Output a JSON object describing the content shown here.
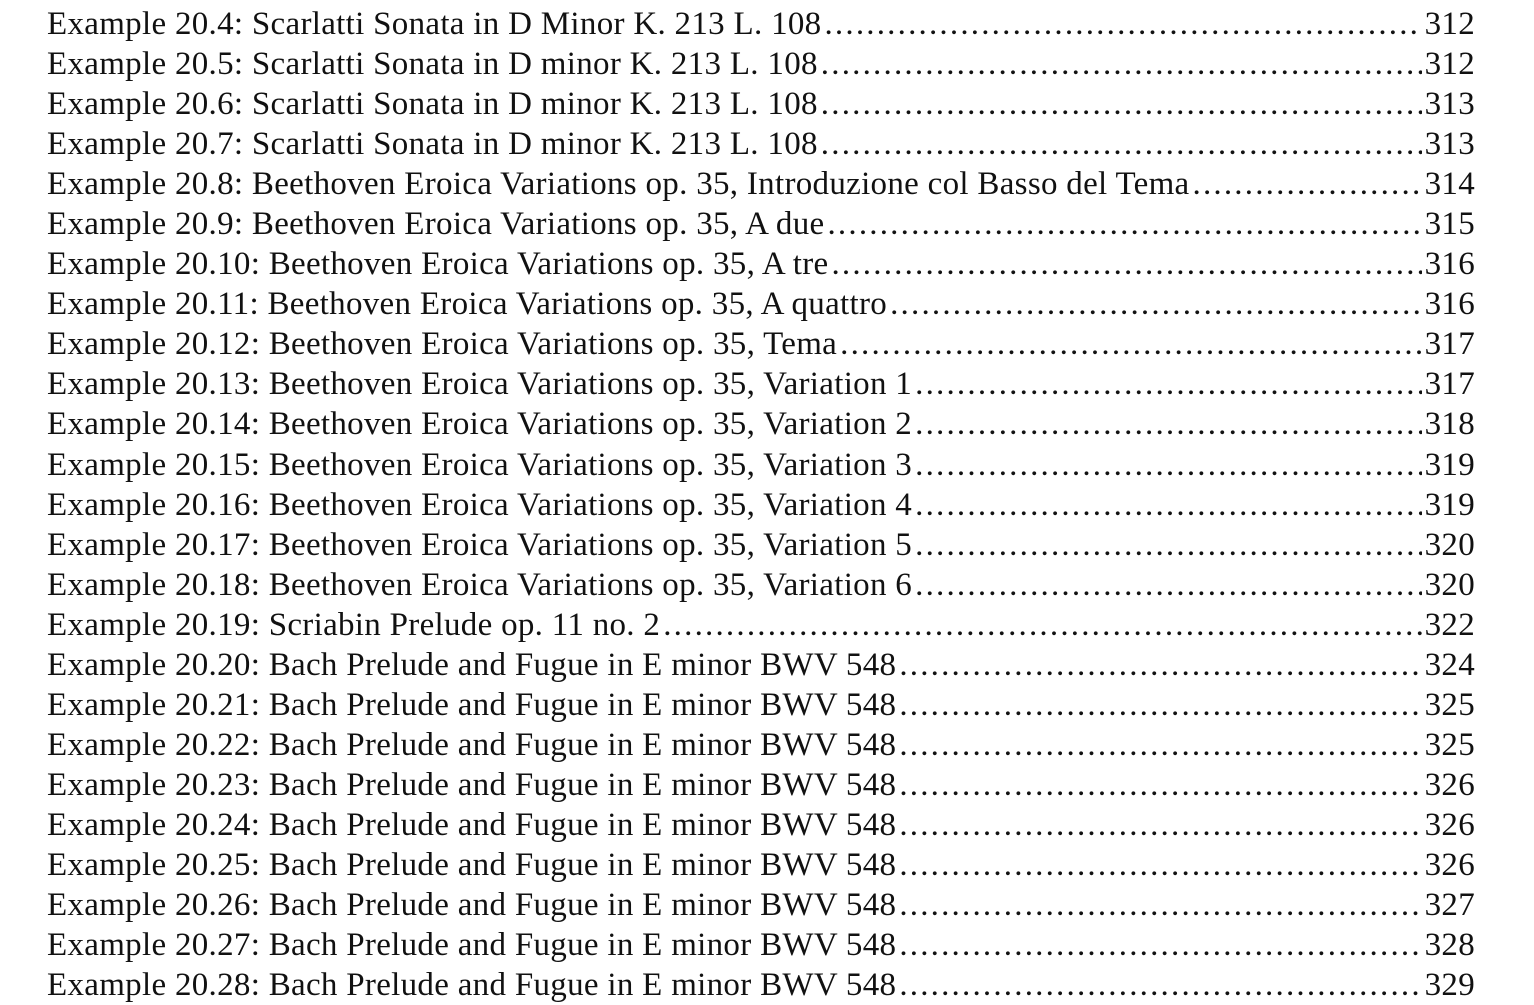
{
  "entries": [
    {
      "label": "Example 20.4: Scarlatti Sonata in D Minor K. 213 L. 108",
      "page": "312"
    },
    {
      "label": "Example 20.5: Scarlatti Sonata in D minor K. 213 L. 108",
      "page": "312"
    },
    {
      "label": "Example 20.6: Scarlatti Sonata in D minor K. 213 L. 108",
      "page": "313"
    },
    {
      "label": "Example 20.7: Scarlatti Sonata in D minor K. 213 L. 108",
      "page": "313"
    },
    {
      "label": "Example 20.8: Beethoven Eroica Variations op. 35, Introduzione col Basso del Tema",
      "page": "314"
    },
    {
      "label": "Example 20.9: Beethoven Eroica Variations op. 35, A due",
      "page": "315"
    },
    {
      "label": "Example 20.10: Beethoven Eroica Variations op. 35, A tre",
      "page": "316"
    },
    {
      "label": "Example 20.11: Beethoven Eroica Variations op. 35, A quattro",
      "page": "316"
    },
    {
      "label": "Example 20.12: Beethoven Eroica Variations op. 35, Tema",
      "page": "317"
    },
    {
      "label": "Example 20.13: Beethoven Eroica Variations op. 35, Variation 1",
      "page": "317"
    },
    {
      "label": "Example 20.14: Beethoven Eroica Variations op. 35, Variation 2",
      "page": "318"
    },
    {
      "label": "Example 20.15: Beethoven Eroica Variations op. 35, Variation 3",
      "page": "319"
    },
    {
      "label": "Example 20.16: Beethoven Eroica Variations op. 35, Variation 4",
      "page": "319"
    },
    {
      "label": "Example 20.17: Beethoven Eroica Variations op. 35, Variation 5",
      "page": "320"
    },
    {
      "label": "Example 20.18: Beethoven Eroica Variations op. 35, Variation 6",
      "page": "320"
    },
    {
      "label": "Example 20.19: Scriabin Prelude op. 11 no. 2",
      "page": "322"
    },
    {
      "label": "Example 20.20: Bach Prelude and Fugue in E minor BWV 548",
      "page": "324"
    },
    {
      "label": "Example 20.21: Bach Prelude and Fugue in E minor BWV 548",
      "page": "325"
    },
    {
      "label": "Example 20.22: Bach Prelude and Fugue in E minor BWV 548",
      "page": "325"
    },
    {
      "label": "Example 20.23: Bach Prelude and Fugue in E minor BWV 548",
      "page": "326"
    },
    {
      "label": "Example 20.24: Bach Prelude and Fugue in E minor BWV 548",
      "page": "326"
    },
    {
      "label": "Example 20.25: Bach Prelude and Fugue in E minor BWV 548",
      "page": "326"
    },
    {
      "label": "Example 20.26: Bach Prelude and Fugue in E minor BWV 548",
      "page": "327"
    },
    {
      "label": "Example 20.27: Bach Prelude and Fugue in E minor BWV 548",
      "page": "328"
    },
    {
      "label": "Example 20.28: Bach Prelude and Fugue in E minor BWV 548",
      "page": "329"
    }
  ]
}
